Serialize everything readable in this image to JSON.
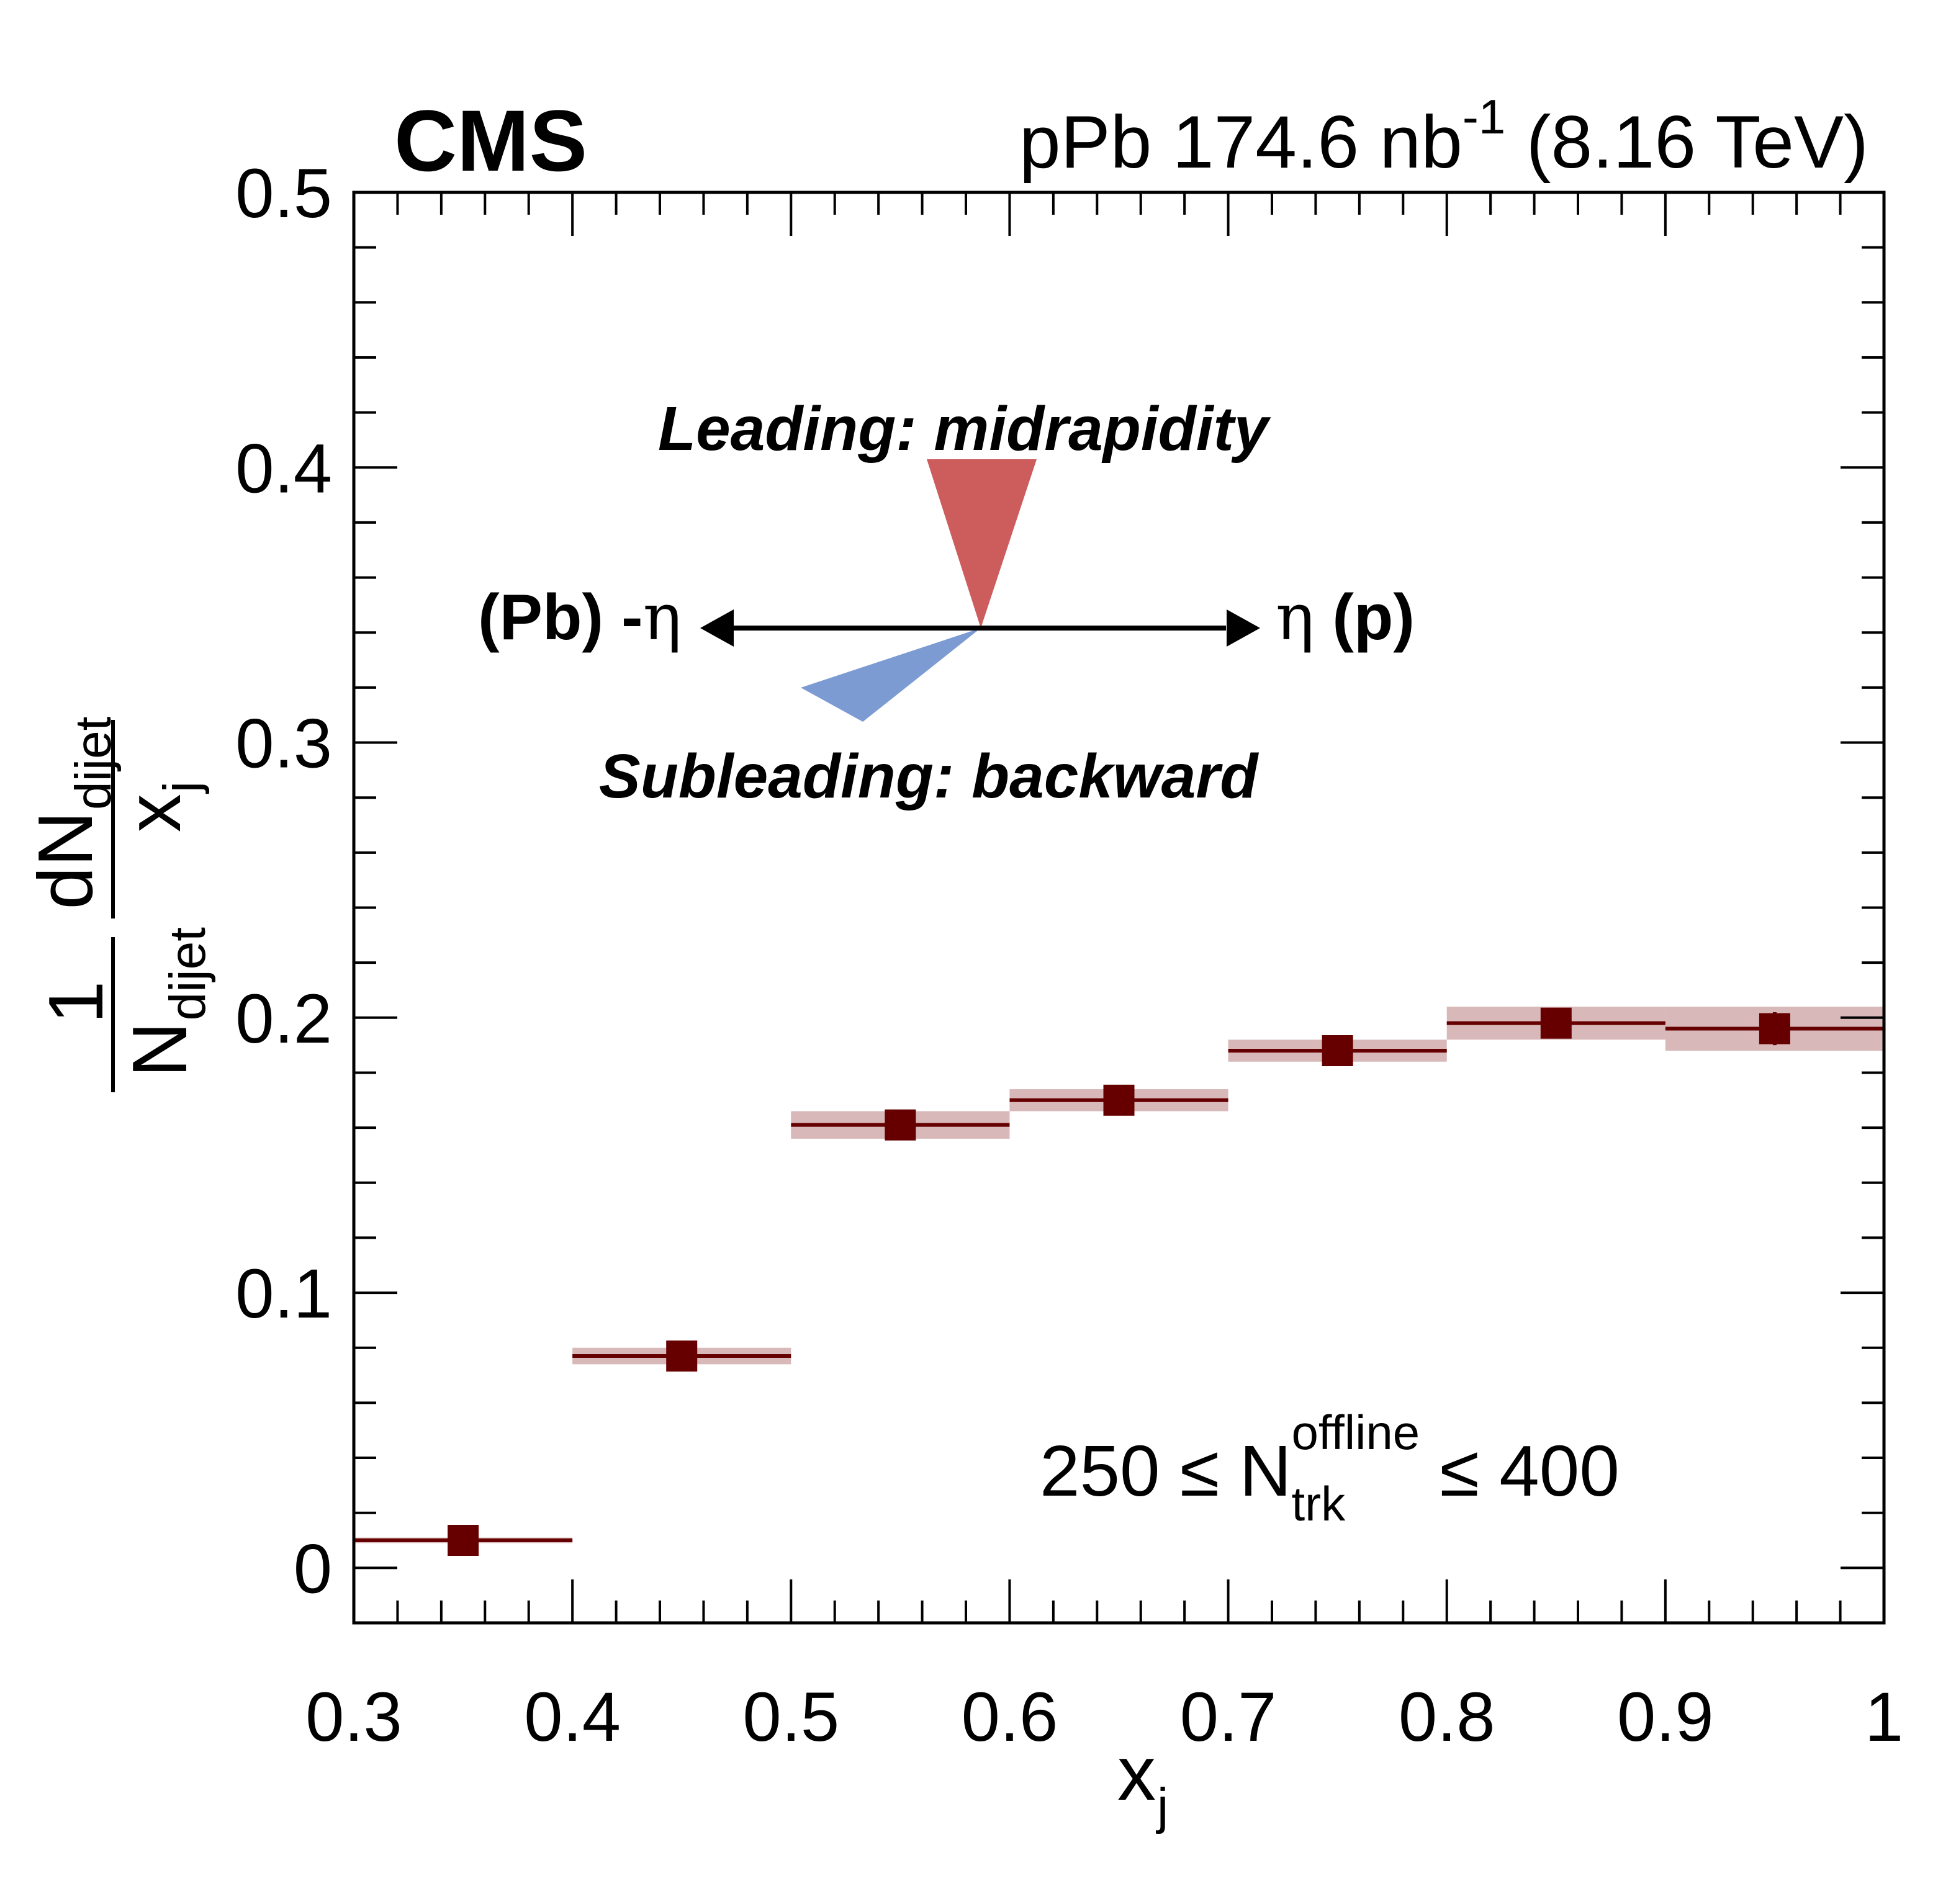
{
  "header": {
    "experiment": "CMS",
    "lumi_prefix": "pPb 174.6 nb",
    "lumi_exp": "-1",
    "lumi_suffix": " (8.16 TeV)"
  },
  "axes": {
    "x_title": "x",
    "x_title_sub": "j",
    "y_title": {
      "one": "1",
      "n_dijet": "N",
      "n_dijet_sub": "dijet",
      "dn": "dN",
      "dn_sub": "dijet",
      "x": "x",
      "x_sub": "j"
    }
  },
  "selection": {
    "left": "250 ≤ N",
    "sup": "offline",
    "sub": "trk",
    "right": " ≤ 400"
  },
  "inset": {
    "leading_label": "Leading: midrapidity",
    "subleading_label": "Subleading: backward",
    "left_label": "(Pb) -",
    "left_eta": "η",
    "right_eta": "η",
    "right_label": " (p)",
    "leading_color": "#cd5c5c",
    "subleading_color": "#7b9bd2"
  },
  "colors": {
    "marker": "#660000",
    "syst_band": "#d8b8b8"
  },
  "chart_data": {
    "type": "scatter",
    "xlabel": "xj",
    "ylabel": "1/Ndijet dNdijet/xj",
    "xlim": [
      0.3,
      1.0
    ],
    "ylim": [
      -0.02,
      0.5
    ],
    "x_ticks": [
      {
        "v": 0.3,
        "label": "0.3"
      },
      {
        "v": 0.4,
        "label": "0.4"
      },
      {
        "v": 0.5,
        "label": "0.5"
      },
      {
        "v": 0.6,
        "label": "0.6"
      },
      {
        "v": 0.7,
        "label": "0.7"
      },
      {
        "v": 0.8,
        "label": "0.8"
      },
      {
        "v": 0.9,
        "label": "0.9"
      },
      {
        "v": 1.0,
        "label": "1"
      }
    ],
    "y_ticks": [
      {
        "v": 0,
        "label": "0"
      },
      {
        "v": 0.1,
        "label": "0.1"
      },
      {
        "v": 0.2,
        "label": "0.2"
      },
      {
        "v": 0.3,
        "label": "0.3"
      },
      {
        "v": 0.4,
        "label": "0.4"
      },
      {
        "v": 0.5,
        "label": "0.5"
      }
    ],
    "grid": false,
    "points": [
      {
        "x": 0.35,
        "xlow": 0.3,
        "xhigh": 0.4,
        "y": 0.01,
        "stat": 0.001,
        "syst": 0.001
      },
      {
        "x": 0.45,
        "xlow": 0.4,
        "xhigh": 0.5,
        "y": 0.077,
        "stat": 0.002,
        "syst": 0.003
      },
      {
        "x": 0.55,
        "xlow": 0.5,
        "xhigh": 0.6,
        "y": 0.161,
        "stat": 0.003,
        "syst": 0.005
      },
      {
        "x": 0.65,
        "xlow": 0.6,
        "xhigh": 0.7,
        "y": 0.17,
        "stat": 0.003,
        "syst": 0.004
      },
      {
        "x": 0.75,
        "xlow": 0.7,
        "xhigh": 0.8,
        "y": 0.188,
        "stat": 0.003,
        "syst": 0.004
      },
      {
        "x": 0.85,
        "xlow": 0.8,
        "xhigh": 0.9,
        "y": 0.198,
        "stat": 0.003,
        "syst": 0.006
      },
      {
        "x": 0.95,
        "xlow": 0.9,
        "xhigh": 1.0,
        "y": 0.196,
        "stat": 0.006,
        "syst": 0.008
      }
    ]
  }
}
